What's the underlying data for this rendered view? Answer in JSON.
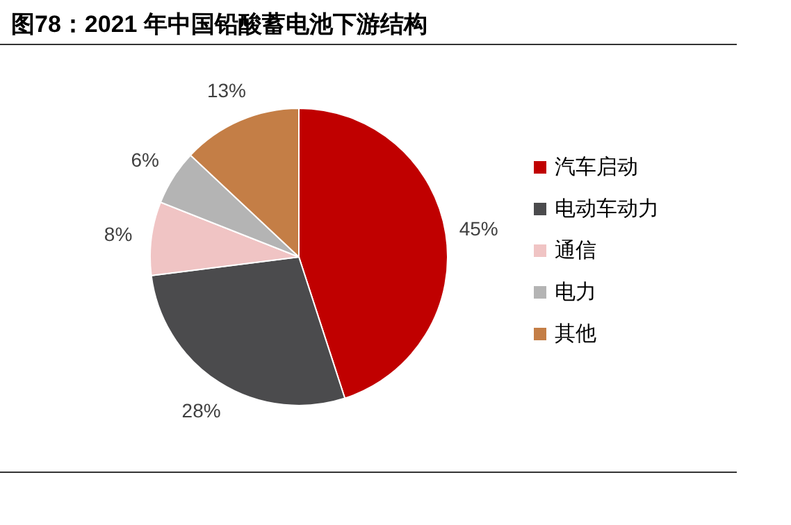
{
  "chart_data": {
    "type": "pie",
    "title": "图78：2021 年中国铅酸蓄电池下游结构",
    "categories": [
      "汽车启动",
      "电动车动力",
      "通信",
      "电力",
      "其他"
    ],
    "values": [
      45,
      28,
      8,
      6,
      13
    ],
    "colors": [
      "#c00000",
      "#4b4b4d",
      "#f0c4c4",
      "#b4b4b4",
      "#c47e46"
    ],
    "value_labels": [
      "45%",
      "28%",
      "8%",
      "6%",
      "13%"
    ],
    "legend": "right"
  }
}
